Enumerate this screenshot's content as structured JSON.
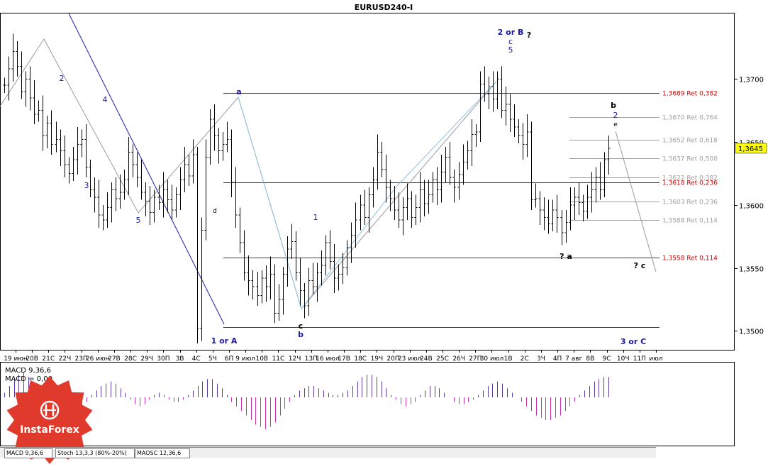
{
  "chart_data": {
    "type": "candlestick",
    "title": "EURUSD240-I",
    "symbol": "EURUSD",
    "timeframe": "H4",
    "ylim": [
      1.3485,
      1.3752
    ],
    "y_ticks": [
      {
        "value": 1.37,
        "label": "1,3700"
      },
      {
        "value": 1.365,
        "label": "1,3650"
      },
      {
        "value": 1.36,
        "label": "1,3600"
      },
      {
        "value": 1.355,
        "label": "1,3550"
      },
      {
        "value": 1.35,
        "label": "1,3500"
      }
    ],
    "current_price": {
      "value": 1.3645,
      "label": "1,3645"
    },
    "x_labels": [
      "19 июн",
      "20В",
      "21С",
      "22Ч",
      "23П",
      "26 июн",
      "27В",
      "28С",
      "29Ч",
      "30П",
      "3В",
      "4С",
      "5Ч",
      "6П",
      "9 июл",
      "10В",
      "11С",
      "12Ч",
      "13П",
      "16 июл",
      "17В",
      "18С",
      "19Ч",
      "20П",
      "23 июл",
      "24В",
      "25С",
      "26Ч",
      "27П",
      "30 июл",
      "1В",
      "2С",
      "3Ч",
      "4П",
      "7 авг",
      "8В",
      "9С",
      "10Ч",
      "11П",
      "июл"
    ],
    "prices": [
      1.3695,
      1.3708,
      1.3722,
      1.371,
      1.369,
      1.37,
      1.3685,
      1.3672,
      1.3675,
      1.3655,
      1.3665,
      1.3648,
      1.3652,
      1.3643,
      1.3632,
      1.3625,
      1.3636,
      1.3648,
      1.3652,
      1.363,
      1.3612,
      1.3606,
      1.3592,
      1.3588,
      1.3598,
      1.3612,
      1.3605,
      1.361,
      1.362,
      1.3642,
      1.3632,
      1.3622,
      1.361,
      1.3603,
      1.3594,
      1.3606,
      1.3602,
      1.3612,
      1.3604,
      1.3596,
      1.3608,
      1.362,
      1.3632,
      1.3623,
      1.364,
      1.3502,
      1.358,
      1.3638,
      1.3668,
      1.3655,
      1.3643,
      1.3648,
      1.3652,
      1.3618,
      1.3592,
      1.357,
      1.3546,
      1.354,
      1.3535,
      1.3528,
      1.3542,
      1.3535,
      1.3545,
      1.3514,
      1.3525,
      1.3545,
      1.3565,
      1.3571,
      1.3546,
      1.3532,
      1.352,
      1.354,
      1.3535,
      1.3546,
      1.3552,
      1.357,
      1.3555,
      1.3542,
      1.3545,
      1.355,
      1.3566,
      1.3576,
      1.3588,
      1.36,
      1.359,
      1.3608,
      1.362,
      1.3642,
      1.3628,
      1.3614,
      1.3605,
      1.3596,
      1.3588,
      1.3598,
      1.3605,
      1.359,
      1.3598,
      1.3612,
      1.3601,
      1.3608,
      1.362,
      1.3612,
      1.3626,
      1.3638,
      1.3622,
      1.3614,
      1.3624,
      1.3634,
      1.3643,
      1.3656,
      1.3658,
      1.3696,
      1.3688,
      1.3694,
      1.3684,
      1.37,
      1.3675,
      1.368,
      1.3668,
      1.3662,
      1.3655,
      1.3648,
      1.3658,
      1.3604,
      1.3605,
      1.3596,
      1.359,
      1.3585,
      1.3596,
      1.359,
      1.3578,
      1.3586,
      1.36,
      1.3606,
      1.3602,
      1.3595,
      1.3606,
      1.3612,
      1.3622,
      1.3612,
      1.3636,
      1.3645
    ],
    "fibo_levels_red": [
      {
        "value": 1.3689,
        "label": "1,3689 Ret 0,382"
      },
      {
        "value": 1.3618,
        "label": "1,3618 Ret 0,236"
      },
      {
        "value": 1.3558,
        "label": "1,3558 Ret 0,114"
      }
    ],
    "fibo_levels_gray": [
      {
        "value": 1.367,
        "label": "1,3670 Ret 0,764"
      },
      {
        "value": 1.3652,
        "label": "1,3652 Ret 0,618"
      },
      {
        "value": 1.3637,
        "label": "1,3637 Ret 0,500"
      },
      {
        "value": 1.3622,
        "label": "1,3622 Ret 0,382"
      },
      {
        "value": 1.3603,
        "label": "1,3603 Ret 0,236"
      },
      {
        "value": 1.3588,
        "label": "1,3588 Ret 0,114"
      }
    ],
    "support_level": 1.3503,
    "wave_labels_top": [
      "2 or B",
      "?",
      "c",
      "5"
    ],
    "wave_labels_bottom": [
      "1 or A",
      "3 or C"
    ],
    "wave_labels_misc": [
      "? a",
      "? c",
      "b",
      "2",
      "e",
      "a",
      "d",
      "b",
      "c",
      "1",
      "5",
      "3",
      "4",
      "2"
    ],
    "macd": {
      "label": "MACD 9,36,6",
      "value_label": "MACD = 0,00",
      "values": [
        0.2,
        0.5,
        0.8,
        1.0,
        1.1,
        0.9,
        0.6,
        0.4,
        0.3,
        0.1,
        -0.1,
        -0.3,
        -0.5,
        -0.6,
        -0.6,
        -0.5,
        -0.4,
        -0.2,
        0.1,
        0.3,
        0.5,
        0.6,
        0.7,
        0.6,
        0.4,
        0.2,
        -0.1,
        -0.3,
        -0.4,
        -0.3,
        -0.1,
        0.1,
        0.2,
        0.1,
        -0.1,
        -0.2,
        -0.2,
        -0.1,
        0.1,
        0.3,
        0.5,
        0.7,
        0.8,
        0.8,
        0.6,
        0.4,
        0.1,
        -0.2,
        -0.4,
        -0.6,
        -0.8,
        -1.0,
        -1.2,
        -1.3,
        -1.4,
        -1.3,
        -1.1,
        -0.8,
        -0.5,
        -0.2,
        0.1,
        0.3,
        0.4,
        0.5,
        0.5,
        0.4,
        0.3,
        0.2,
        0.1,
        0.1,
        0.2,
        0.3,
        0.5,
        0.7,
        0.9,
        1.0,
        1.0,
        0.9,
        0.7,
        0.4,
        0.1,
        -0.1,
        -0.3,
        -0.4,
        -0.3,
        -0.2,
        0.1,
        0.3,
        0.5,
        0.5,
        0.4,
        0.2,
        0.0,
        -0.2,
        -0.3,
        -0.3,
        -0.2,
        -0.1,
        0.1,
        0.3,
        0.5,
        0.6,
        0.7,
        0.6,
        0.4,
        0.2,
        0.0,
        -0.2,
        -0.4,
        -0.6,
        -0.8,
        -0.9,
        -1.0,
        -1.0,
        -0.9,
        -0.8,
        -0.6,
        -0.4,
        -0.2,
        0.1,
        0.3,
        0.5,
        0.7,
        0.8,
        0.9,
        0.9
      ]
    },
    "indicator_tabs": [
      "MACD 9,36,6",
      "Stoch 13,3,3 (80%-20%)",
      "MAOSC 12,36,6"
    ],
    "colors": {
      "fibo_red": "#cc0000",
      "fibo_gray": "#a0a0a0",
      "trend_blue": "#1a1aa6",
      "light_trend": "#8fc0e0",
      "macd_pos": "#5a3aa8",
      "macd_neg": "#c832b4",
      "logo_red": "#e03a2c",
      "current_price_bg": "#ffff00"
    },
    "watermark": "InstaForex"
  }
}
